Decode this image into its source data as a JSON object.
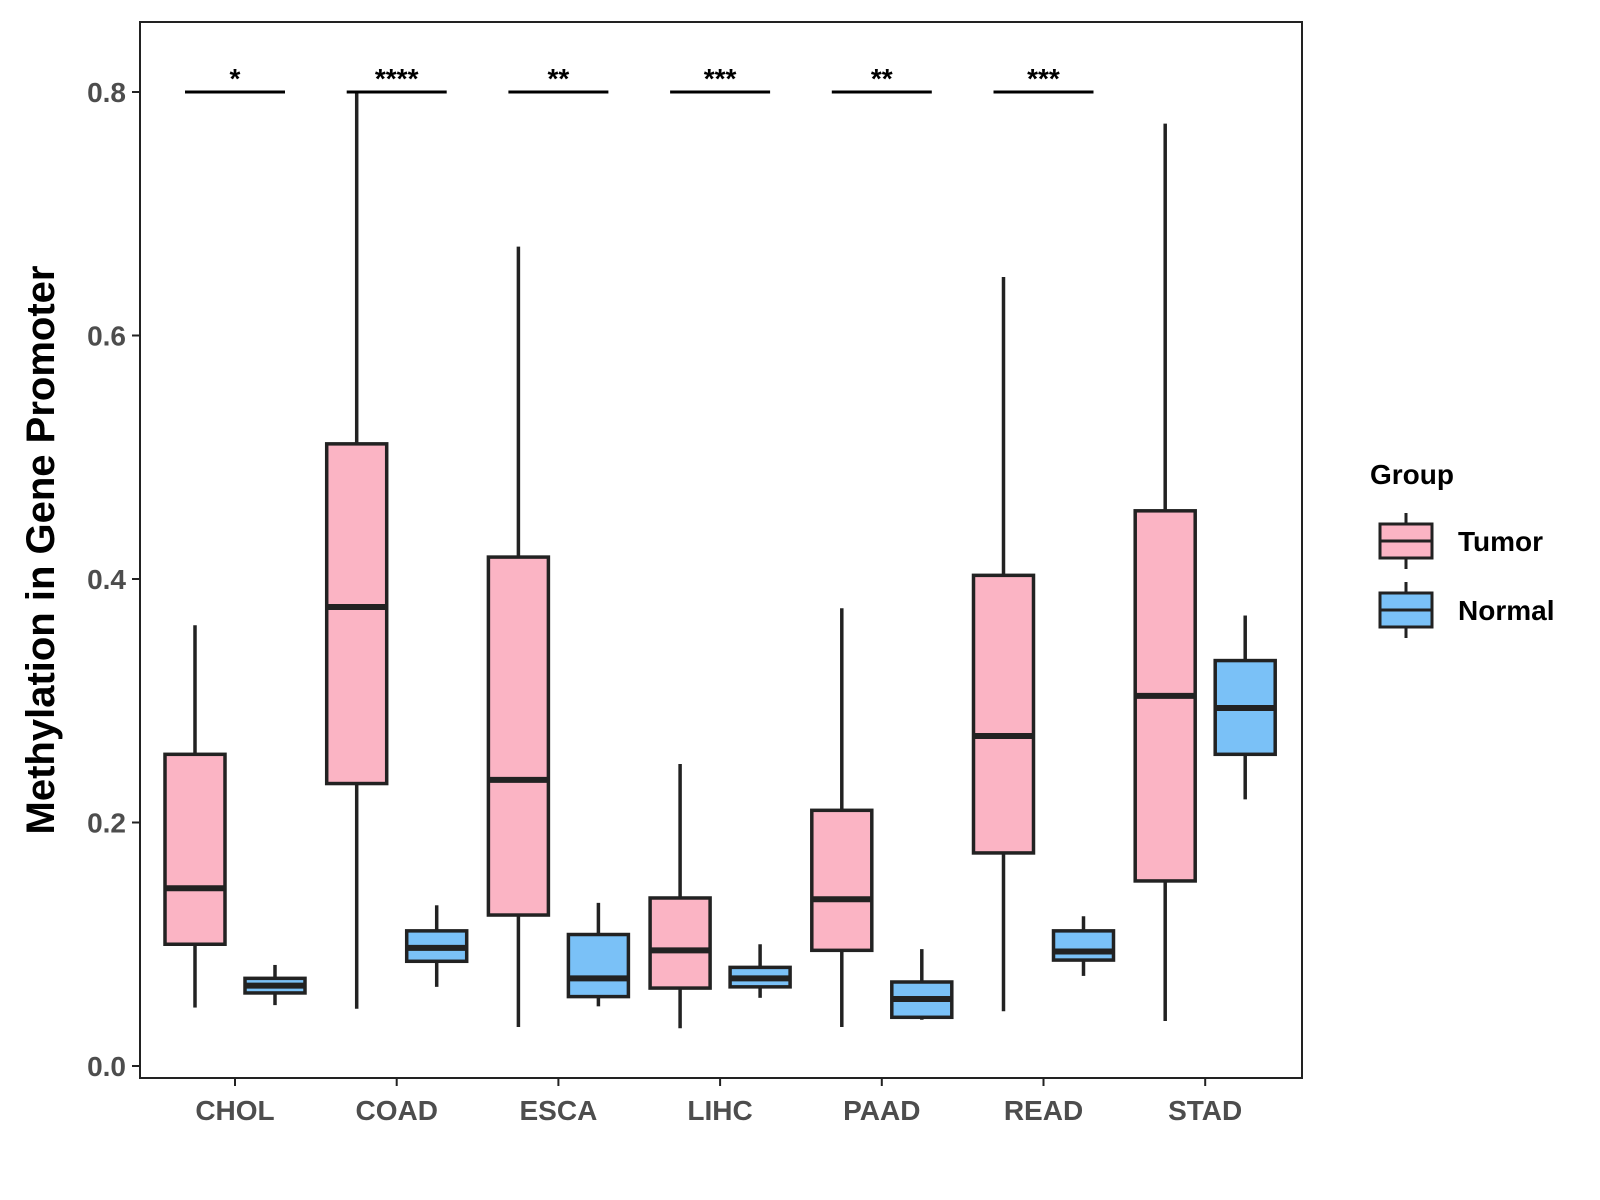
{
  "chart_data": {
    "type": "boxplot",
    "ylabel": "Methylation in Gene Promoter",
    "xlabel": "",
    "ylim": [
      0,
      0.86
    ],
    "yticks": [
      "0.0",
      "0.2",
      "0.4",
      "0.6",
      "0.8"
    ],
    "ytick_values": [
      0,
      0.2,
      0.4,
      0.6,
      0.8
    ],
    "categories": [
      "CHOL",
      "COAD",
      "ESCA",
      "LIHC",
      "PAAD",
      "READ",
      "STAD"
    ],
    "legend": {
      "title": "Group",
      "position": "right",
      "entries": [
        {
          "name": "Tumor",
          "color": "#FBB4C4"
        },
        {
          "name": "Normal",
          "color": "#7AC1F7"
        }
      ]
    },
    "series": [
      {
        "name": "Tumor",
        "color": "#FBB4C4",
        "boxes": [
          {
            "category": "CHOL",
            "min": 0.048,
            "q1": 0.1,
            "median": 0.146,
            "q3": 0.256,
            "max": 0.362
          },
          {
            "category": "COAD",
            "min": 0.047,
            "q1": 0.232,
            "median": 0.377,
            "q3": 0.511,
            "max": 0.8
          },
          {
            "category": "ESCA",
            "min": 0.032,
            "q1": 0.124,
            "median": 0.235,
            "q3": 0.418,
            "max": 0.673
          },
          {
            "category": "LIHC",
            "min": 0.031,
            "q1": 0.064,
            "median": 0.095,
            "q3": 0.138,
            "max": 0.248
          },
          {
            "category": "PAAD",
            "min": 0.032,
            "q1": 0.095,
            "median": 0.137,
            "q3": 0.21,
            "max": 0.376
          },
          {
            "category": "READ",
            "min": 0.045,
            "q1": 0.175,
            "median": 0.271,
            "q3": 0.403,
            "max": 0.648
          },
          {
            "category": "STAD",
            "min": 0.037,
            "q1": 0.152,
            "median": 0.304,
            "q3": 0.456,
            "max": 0.774
          }
        ]
      },
      {
        "name": "Normal",
        "color": "#7AC1F7",
        "boxes": [
          {
            "category": "CHOL",
            "min": 0.05,
            "q1": 0.06,
            "median": 0.066,
            "q3": 0.072,
            "max": 0.083
          },
          {
            "category": "COAD",
            "min": 0.065,
            "q1": 0.086,
            "median": 0.097,
            "q3": 0.111,
            "max": 0.132
          },
          {
            "category": "ESCA",
            "min": 0.049,
            "q1": 0.057,
            "median": 0.072,
            "q3": 0.108,
            "max": 0.134
          },
          {
            "category": "LIHC",
            "min": 0.056,
            "q1": 0.065,
            "median": 0.072,
            "q3": 0.081,
            "max": 0.1
          },
          {
            "category": "PAAD",
            "min": 0.038,
            "q1": 0.04,
            "median": 0.055,
            "q3": 0.069,
            "max": 0.096
          },
          {
            "category": "READ",
            "min": 0.074,
            "q1": 0.087,
            "median": 0.094,
            "q3": 0.111,
            "max": 0.123
          },
          {
            "category": "STAD",
            "min": 0.219,
            "q1": 0.256,
            "median": 0.294,
            "q3": 0.333,
            "max": 0.37
          }
        ]
      }
    ],
    "significance": [
      {
        "category": "CHOL",
        "label": "*",
        "y": 0.8
      },
      {
        "category": "COAD",
        "label": "****",
        "y": 0.8
      },
      {
        "category": "ESCA",
        "label": "**",
        "y": 0.8
      },
      {
        "category": "LIHC",
        "label": "***",
        "y": 0.8
      },
      {
        "category": "PAAD",
        "label": "**",
        "y": 0.8
      },
      {
        "category": "READ",
        "label": "***",
        "y": 0.8
      }
    ]
  }
}
